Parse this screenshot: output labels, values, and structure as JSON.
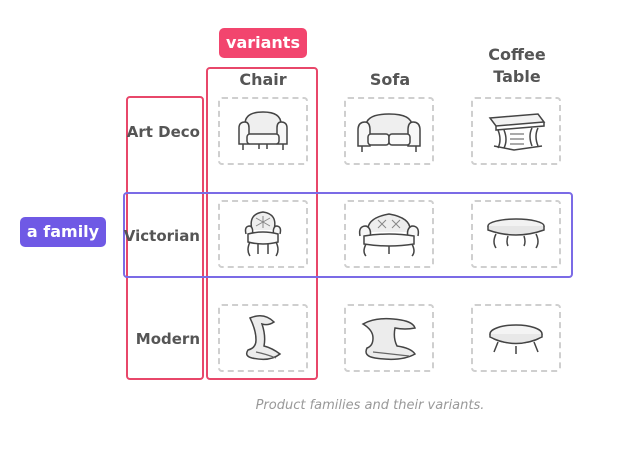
{
  "labels": {
    "variants_tag": "variants",
    "family_tag": "a family",
    "caption": "Product families and their variants."
  },
  "columns": [
    {
      "label": "Chair"
    },
    {
      "label": "Sofa"
    },
    {
      "label": "Coffee Table"
    }
  ],
  "rows": [
    {
      "label": "Art Deco",
      "items": [
        "art-deco-chair-icon",
        "art-deco-sofa-icon",
        "art-deco-coffee-table-icon"
      ]
    },
    {
      "label": "Victorian",
      "items": [
        "victorian-chair-icon",
        "victorian-sofa-icon",
        "victorian-coffee-table-icon"
      ]
    },
    {
      "label": "Modern",
      "items": [
        "modern-chair-icon",
        "modern-sofa-icon",
        "modern-coffee-table-icon"
      ]
    }
  ],
  "colors": {
    "variants_highlight": "#f2456e",
    "family_highlight": "#6f59e5",
    "cell_border": "#cfcfcf"
  }
}
